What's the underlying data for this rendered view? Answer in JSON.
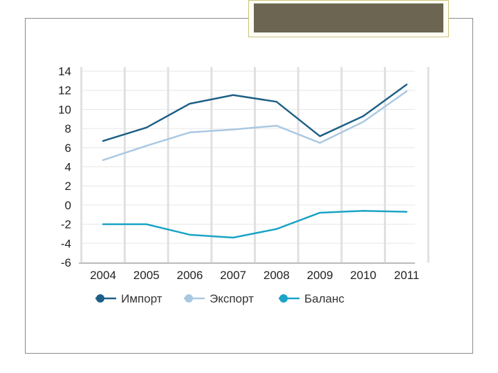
{
  "header": {
    "title_text": ""
  },
  "chart_data": {
    "type": "line",
    "x": [
      "2004",
      "2005",
      "2006",
      "2007",
      "2008",
      "2009",
      "2010",
      "2011"
    ],
    "series": [
      {
        "name": "Импорт",
        "values": [
          6.7,
          8.1,
          10.6,
          11.5,
          10.8,
          7.2,
          9.3,
          12.6
        ],
        "color": "#1d5f86"
      },
      {
        "name": "Экспорт",
        "values": [
          4.7,
          6.2,
          7.6,
          7.9,
          8.3,
          6.5,
          8.7,
          11.9
        ],
        "color": "#a9c8e2"
      },
      {
        "name": "Баланс",
        "values": [
          -2.0,
          -2.0,
          -3.1,
          -3.4,
          -2.5,
          -0.8,
          -0.6,
          -0.7
        ],
        "color": "#1aa3c6"
      }
    ],
    "y_ticks": [
      "14",
      "12",
      "10",
      "8",
      "6",
      "4",
      "2",
      "0",
      "-2",
      "-4",
      "-6"
    ],
    "ylim": [
      -6,
      14
    ],
    "grid": true,
    "legend_position": "bottom"
  }
}
